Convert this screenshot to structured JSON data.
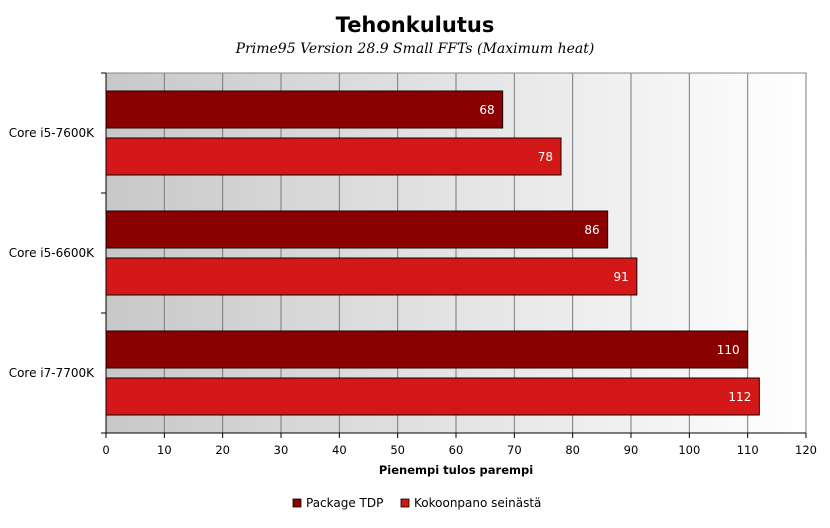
{
  "chart_data": {
    "type": "bar",
    "orientation": "horizontal",
    "title": "Tehonkulutus",
    "subtitle": "Prime95 Version 28.9 Small FFTs (Maximum heat)",
    "xlabel": "Pienempi tulos parempi",
    "ylabel": "",
    "xlim": [
      0,
      120
    ],
    "xticks": [
      0,
      10,
      20,
      30,
      40,
      50,
      60,
      70,
      80,
      90,
      100,
      110,
      120
    ],
    "grid": true,
    "legend_position": "bottom",
    "categories": [
      "Core i5-7600K",
      "Core i5-6600K",
      "Core i7-7700K"
    ],
    "series": [
      {
        "name": "Package TDP",
        "color": "#8b0000",
        "values": [
          68,
          86,
          110
        ]
      },
      {
        "name": "Kokoonpano seinästä",
        "color": "#d41818",
        "values": [
          78,
          91,
          112
        ]
      }
    ]
  }
}
